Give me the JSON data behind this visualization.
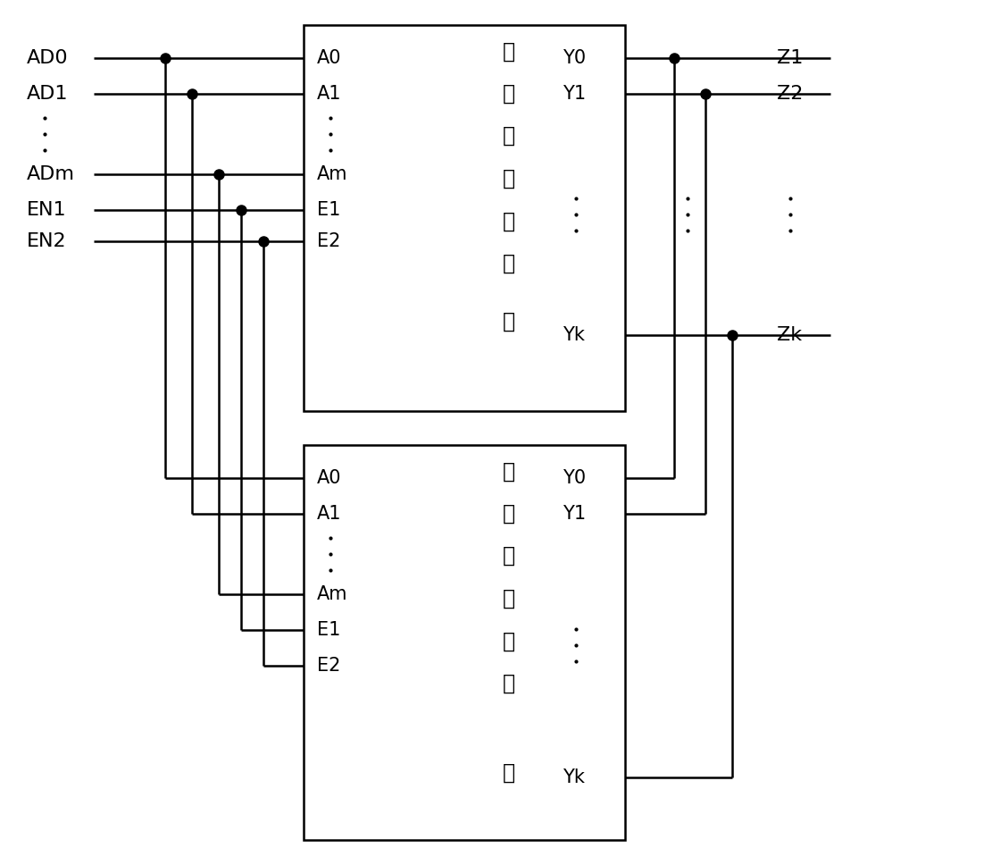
{
  "bg_color": "#ffffff",
  "line_color": "#000000",
  "dot_color": "#000000",
  "figsize": [
    11.02,
    9.68
  ],
  "dpi": 100,
  "left_labels": [
    "AD0",
    "AD1",
    "ADm",
    "EN1",
    "EN2"
  ],
  "box1_in_labels": [
    "A0",
    "A1",
    "Am",
    "E1",
    "E2"
  ],
  "box1_out_labels": [
    "Y0",
    "Y1",
    "Yk"
  ],
  "box2_in_labels": [
    "A0",
    "A1",
    "Am",
    "E1",
    "E2"
  ],
  "box2_out_labels": [
    "Y0",
    "Y1",
    "Yk"
  ],
  "right_labels": [
    "Z1",
    "Z2",
    "Zk"
  ],
  "chinese1": [
    "译",
    "码",
    "驱",
    "动",
    "电",
    "路",
    "一"
  ],
  "chinese2": [
    "译",
    "码",
    "驱",
    "动",
    "电",
    "路",
    "二"
  ]
}
